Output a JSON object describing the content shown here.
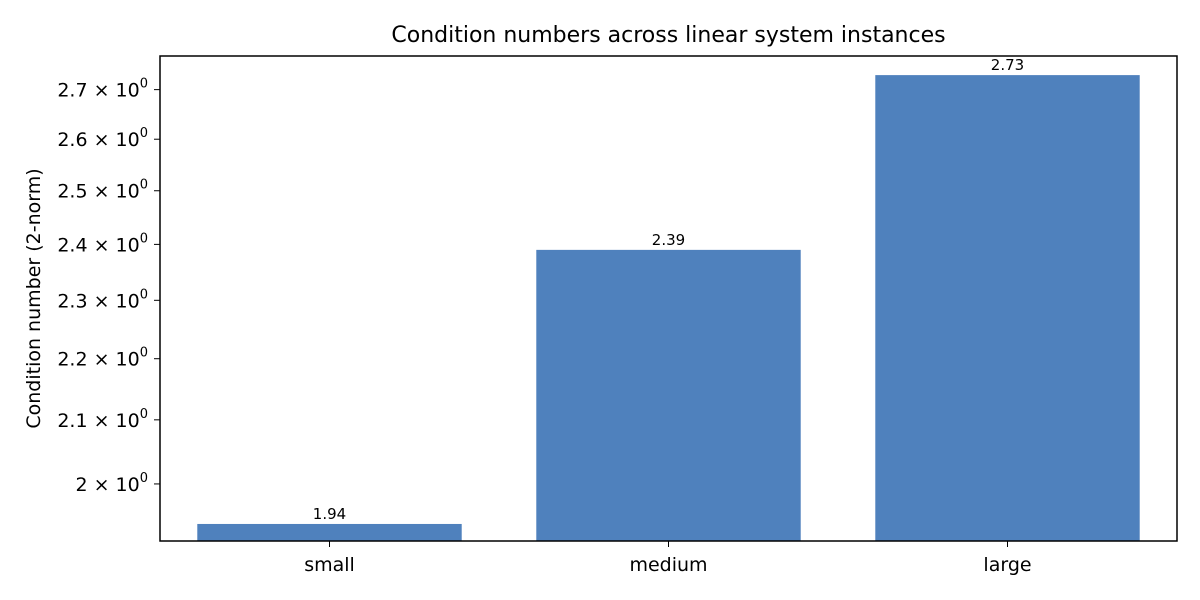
{
  "chart_data": {
    "type": "bar",
    "title": "Condition numbers across linear system instances",
    "xlabel": "",
    "ylabel": "Condition number (2-norm)",
    "yscale": "log",
    "ylim": [
      1.915,
      2.77
    ],
    "categories": [
      "small",
      "medium",
      "large"
    ],
    "values": [
      1.94,
      2.39,
      2.73
    ],
    "data_labels": [
      "1.94",
      "2.39",
      "2.73"
    ],
    "yticks": [
      {
        "value": 2.0,
        "mantissa": "2",
        "exponent": "0"
      },
      {
        "value": 2.1,
        "mantissa": "2.1",
        "exponent": "0"
      },
      {
        "value": 2.2,
        "mantissa": "2.2",
        "exponent": "0"
      },
      {
        "value": 2.3,
        "mantissa": "2.3",
        "exponent": "0"
      },
      {
        "value": 2.4,
        "mantissa": "2.4",
        "exponent": "0"
      },
      {
        "value": 2.5,
        "mantissa": "2.5",
        "exponent": "0"
      },
      {
        "value": 2.6,
        "mantissa": "2.6",
        "exponent": "0"
      },
      {
        "value": 2.7,
        "mantissa": "2.7",
        "exponent": "0"
      }
    ],
    "times_symbol": "×",
    "base": "10",
    "grid": false,
    "bar_color": "#4f81bd"
  }
}
